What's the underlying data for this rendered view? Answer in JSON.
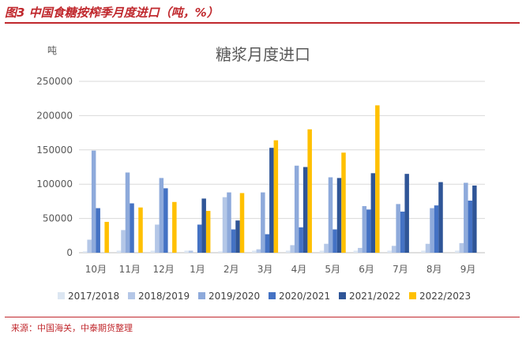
{
  "figure_caption": "图3 中国食糖按榨季月度进口（吨，%）",
  "source": "来源：中国海关，中泰期货整理",
  "chart_data": {
    "type": "bar",
    "title": "糖浆月度进口",
    "ylabel": "吨",
    "xlabel": "",
    "ylim": [
      0,
      250000
    ],
    "yticks": [
      0,
      50000,
      100000,
      150000,
      200000,
      250000
    ],
    "ytick_labels": [
      "0",
      "50000",
      "100000",
      "150000",
      "200000",
      "250000"
    ],
    "grid": true,
    "legend_position": "bottom",
    "categories": [
      "10月",
      "11月",
      "12月",
      "1月",
      "2月",
      "3月",
      "4月",
      "5月",
      "6月",
      "7月",
      "8月",
      "9月"
    ],
    "series": [
      {
        "name": "2017/2018",
        "color": "#dce6f2",
        "values": [
          2000,
          3000,
          3000,
          3000,
          2000,
          3000,
          3000,
          3000,
          3000,
          3000,
          3000,
          3000
        ]
      },
      {
        "name": "2018/2019",
        "color": "#b4c7e7",
        "values": [
          19000,
          33000,
          41000,
          3000,
          81000,
          5000,
          11000,
          13000,
          7000,
          10000,
          13000,
          14000
        ]
      },
      {
        "name": "2019/2020",
        "color": "#8eaadb",
        "values": [
          149000,
          117000,
          109000,
          0,
          88000,
          88000,
          127000,
          110000,
          68000,
          71000,
          65000,
          102000
        ]
      },
      {
        "name": "2020/2021",
        "color": "#4472c4",
        "values": [
          65000,
          72000,
          94000,
          41000,
          34000,
          27000,
          37000,
          34000,
          63000,
          60000,
          69000,
          76000
        ]
      },
      {
        "name": "2021/2022",
        "color": "#2f5597",
        "values": [
          0,
          0,
          0,
          79000,
          47000,
          153000,
          125000,
          109000,
          116000,
          115000,
          103000,
          98000
        ]
      },
      {
        "name": "2022/2023",
        "color": "#ffc000",
        "values": [
          45000,
          66000,
          74000,
          61000,
          87000,
          164000,
          180000,
          146000,
          215000,
          null,
          null,
          null
        ]
      }
    ]
  }
}
